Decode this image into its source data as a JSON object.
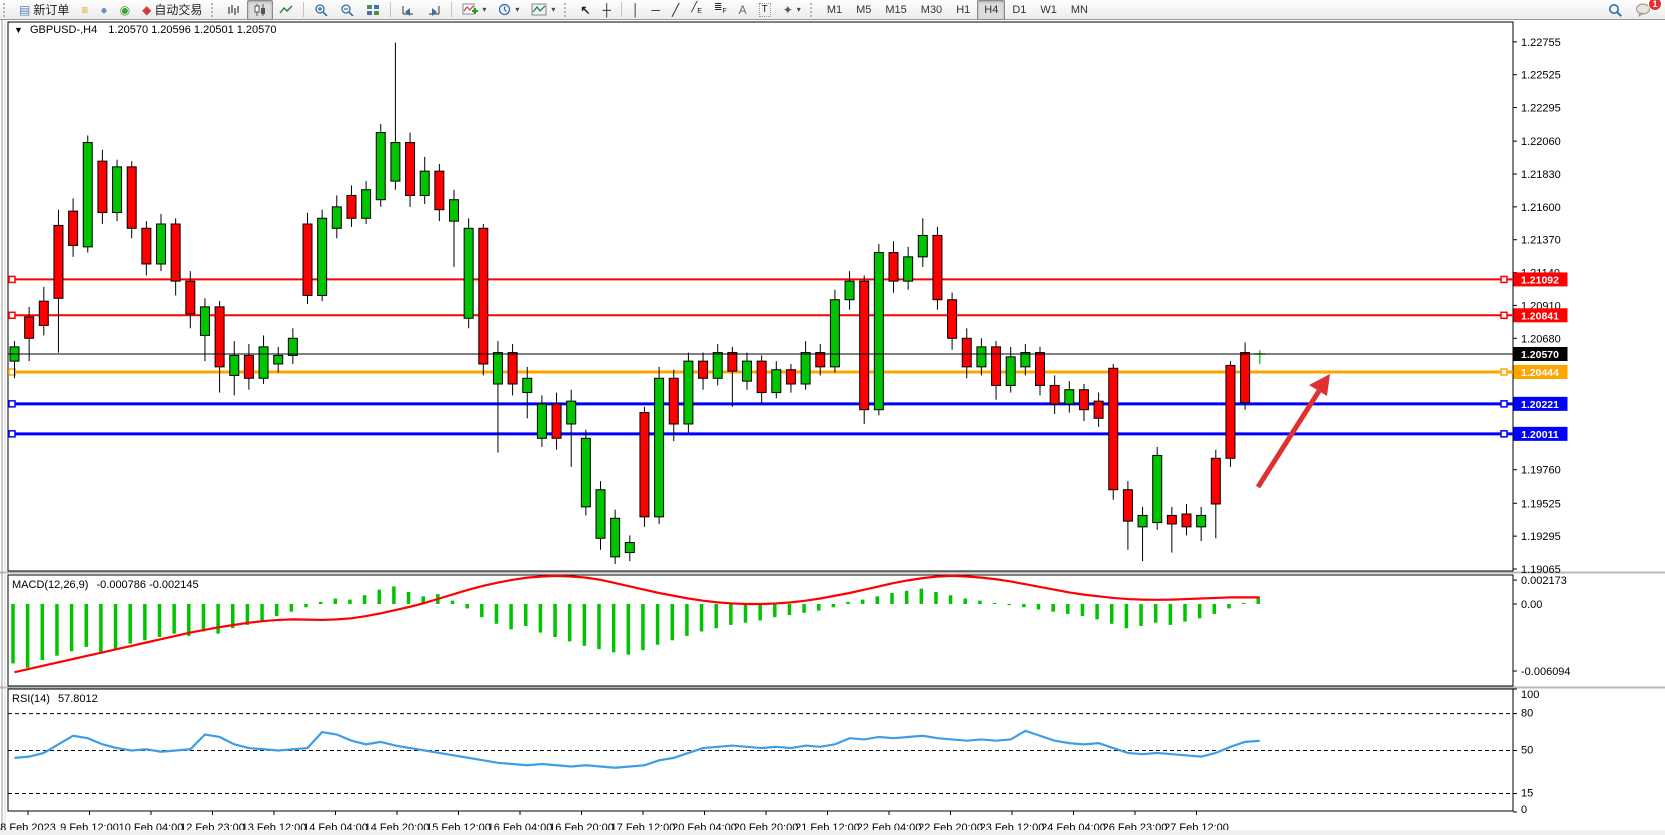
{
  "toolbar": {
    "new_order_label": "新订单",
    "auto_trading_label": "自动交易",
    "notification_count": "1",
    "timeframes": [
      "M1",
      "M5",
      "M15",
      "M30",
      "H1",
      "H4",
      "D1",
      "W1",
      "MN"
    ],
    "active_timeframe": "H4"
  },
  "chart": {
    "title": "GBPUSD-,H4",
    "ohlc": "1.20570 1.20596 1.20501 1.20570"
  },
  "macd": {
    "label": "MACD(12,26,9)",
    "values": "-0.000786 -0.002145",
    "scale_top": "0.002173",
    "scale_zero": "0.00",
    "scale_bottom": "-0.006094"
  },
  "rsi": {
    "label": "RSI(14)",
    "value": "57.8012",
    "scale": [
      100,
      80,
      50,
      15,
      0
    ],
    "dashed_levels": [
      80,
      50,
      15
    ]
  },
  "chart_data": {
    "type": "candlestick",
    "symbol": "GBPUSD-",
    "period": "H4",
    "price_axis_ticks": [
      "1.22755",
      "1.22525",
      "1.22295",
      "1.22060",
      "1.21830",
      "1.21600",
      "1.21370",
      "1.21140",
      "1.20910",
      "1.20680",
      "1.19760",
      "1.19525",
      "1.19295",
      "1.19065"
    ],
    "levels": [
      {
        "price": "1.21092",
        "color": "#ff0000",
        "width": 2
      },
      {
        "price": "1.20841",
        "color": "#ff0000",
        "width": 2
      },
      {
        "price": "1.20570",
        "color": "#000000",
        "width": 1
      },
      {
        "price": "1.20444",
        "color": "#ffa500",
        "width": 3
      },
      {
        "price": "1.20221",
        "color": "#0000ff",
        "width": 3
      },
      {
        "price": "1.20011",
        "color": "#0000ff",
        "width": 3
      }
    ],
    "bull_color": "#00c400",
    "bear_color": "#ff0000",
    "candles": [
      [
        1.2052,
        1.2066,
        1.204,
        1.2062
      ],
      [
        1.2083,
        1.209,
        1.2052,
        1.2068
      ],
      [
        1.2094,
        1.2104,
        1.207,
        1.2077
      ],
      [
        1.2147,
        1.2158,
        1.2058,
        1.2096
      ],
      [
        1.2157,
        1.2166,
        1.2125,
        1.2133
      ],
      [
        1.2132,
        1.221,
        1.2128,
        1.2205
      ],
      [
        1.2192,
        1.22,
        1.2148,
        1.2156
      ],
      [
        1.2156,
        1.2193,
        1.215,
        1.2188
      ],
      [
        1.2188,
        1.2192,
        1.2138,
        1.2145
      ],
      [
        1.2145,
        1.215,
        1.2112,
        1.212
      ],
      [
        1.212,
        1.2155,
        1.2115,
        1.2148
      ],
      [
        1.2148,
        1.2152,
        1.2098,
        1.2108
      ],
      [
        1.2108,
        1.2115,
        1.2075,
        1.2085
      ],
      [
        1.207,
        1.2096,
        1.2052,
        1.209
      ],
      [
        1.209,
        1.2094,
        1.203,
        1.2048
      ],
      [
        1.2042,
        1.2066,
        1.2028,
        1.2056
      ],
      [
        1.2056,
        1.2064,
        1.2032,
        1.204
      ],
      [
        1.204,
        1.207,
        1.2036,
        1.2062
      ],
      [
        1.205,
        1.2062,
        1.2044,
        1.2056
      ],
      [
        1.2056,
        1.2075,
        1.205,
        1.2068
      ],
      [
        1.2148,
        1.2156,
        1.2092,
        1.2098
      ],
      [
        1.2098,
        1.2158,
        1.2094,
        1.2152
      ],
      [
        1.2145,
        1.2168,
        1.2138,
        1.216
      ],
      [
        1.2168,
        1.2175,
        1.2146,
        1.2152
      ],
      [
        1.2152,
        1.2178,
        1.2148,
        1.2172
      ],
      [
        1.2165,
        1.2218,
        1.216,
        1.2212
      ],
      [
        1.2178,
        1.2275,
        1.2172,
        1.2205
      ],
      [
        1.2205,
        1.2212,
        1.216,
        1.2168
      ],
      [
        1.2168,
        1.2195,
        1.2162,
        1.2185
      ],
      [
        1.2185,
        1.219,
        1.215,
        1.2158
      ],
      [
        1.215,
        1.2172,
        1.2118,
        1.2165
      ],
      [
        1.2082,
        1.2152,
        1.2075,
        1.2145
      ],
      [
        1.2145,
        1.2148,
        1.2042,
        1.205
      ],
      [
        1.2036,
        1.2066,
        1.1988,
        1.2058
      ],
      [
        1.2058,
        1.2064,
        1.2028,
        1.2036
      ],
      [
        1.203,
        1.2048,
        1.2012,
        1.204
      ],
      [
        1.1998,
        1.2028,
        1.1992,
        1.2022
      ],
      [
        1.2022,
        1.203,
        1.199,
        1.1998
      ],
      [
        1.2008,
        1.2032,
        1.1978,
        1.2024
      ],
      [
        1.195,
        1.2004,
        1.1944,
        1.1998
      ],
      [
        1.1928,
        1.1968,
        1.192,
        1.1962
      ],
      [
        1.1915,
        1.1948,
        1.191,
        1.1942
      ],
      [
        1.1918,
        1.193,
        1.1912,
        1.1925
      ],
      [
        1.2016,
        1.202,
        1.1936,
        1.1943
      ],
      [
        1.1943,
        1.2048,
        1.1938,
        1.204
      ],
      [
        1.204,
        1.2046,
        1.1996,
        1.2008
      ],
      [
        1.2008,
        1.2058,
        1.2002,
        1.2052
      ],
      [
        1.2052,
        1.2058,
        1.2032,
        1.204
      ],
      [
        1.204,
        1.2064,
        1.2035,
        1.2058
      ],
      [
        1.2058,
        1.2062,
        1.202,
        1.2045
      ],
      [
        1.2038,
        1.2058,
        1.2032,
        1.2052
      ],
      [
        1.2052,
        1.2056,
        1.2022,
        1.203
      ],
      [
        1.203,
        1.2052,
        1.2026,
        1.2046
      ],
      [
        1.2046,
        1.205,
        1.203,
        1.2036
      ],
      [
        1.2036,
        1.2066,
        1.2032,
        1.2058
      ],
      [
        1.2058,
        1.2064,
        1.2042,
        1.2048
      ],
      [
        1.2048,
        1.2102,
        1.2044,
        1.2095
      ],
      [
        1.2095,
        1.2115,
        1.2088,
        1.2108
      ],
      [
        1.2108,
        1.2112,
        1.2008,
        1.2018
      ],
      [
        1.2018,
        1.2134,
        1.2014,
        1.2128
      ],
      [
        1.2128,
        1.2136,
        1.21,
        1.2108
      ],
      [
        1.2108,
        1.2132,
        1.2102,
        1.2125
      ],
      [
        1.2125,
        1.2152,
        1.2118,
        1.214
      ],
      [
        1.214,
        1.2146,
        1.2088,
        1.2095
      ],
      [
        1.2095,
        1.21,
        1.206,
        1.2068
      ],
      [
        1.2068,
        1.2075,
        1.204,
        1.2048
      ],
      [
        1.2048,
        1.2068,
        1.2042,
        1.2062
      ],
      [
        1.2062,
        1.2066,
        1.2025,
        1.2035
      ],
      [
        1.2035,
        1.2062,
        1.203,
        1.2055
      ],
      [
        1.2048,
        1.2064,
        1.2042,
        1.2058
      ],
      [
        1.2058,
        1.2062,
        1.2028,
        1.2035
      ],
      [
        1.2035,
        1.2042,
        1.2015,
        1.2022
      ],
      [
        1.2022,
        1.2038,
        1.2016,
        1.2032
      ],
      [
        1.2032,
        1.2036,
        1.201,
        1.2018
      ],
      [
        1.2024,
        1.203,
        1.2006,
        1.2012
      ],
      [
        1.2047,
        1.205,
        1.1955,
        1.1962
      ],
      [
        1.1962,
        1.1968,
        1.192,
        1.194
      ],
      [
        1.1936,
        1.195,
        1.1912,
        1.1944
      ],
      [
        1.1939,
        1.1992,
        1.1934,
        1.1986
      ],
      [
        1.1944,
        1.195,
        1.1918,
        1.1938
      ],
      [
        1.1945,
        1.1952,
        1.193,
        1.1936
      ],
      [
        1.1936,
        1.195,
        1.1926,
        1.1944
      ],
      [
        1.1984,
        1.199,
        1.1928,
        1.1952
      ],
      [
        1.2049,
        1.2052,
        1.1978,
        1.1984
      ],
      [
        1.2058,
        1.2065,
        1.2018,
        1.2023
      ],
      [
        1.2057,
        1.20596,
        1.20501,
        1.2057
      ]
    ],
    "macd_hist": [
      -5.4,
      -5.8,
      -5.1,
      -4.7,
      -4.3,
      -3.9,
      -4.5,
      -4.1,
      -3.6,
      -3.3,
      -3.0,
      -2.7,
      -2.9,
      -2.5,
      -2.7,
      -2.2,
      -1.9,
      -1.5,
      -1.1,
      -0.7,
      -0.3,
      0.2,
      0.5,
      0.4,
      0.8,
      1.3,
      1.6,
      1.1,
      0.7,
      0.9,
      0.3,
      -0.4,
      -1.2,
      -1.8,
      -2.3,
      -2.0,
      -2.6,
      -3.0,
      -3.4,
      -3.8,
      -4.1,
      -4.4,
      -4.6,
      -4.2,
      -3.7,
      -3.3,
      -2.9,
      -2.5,
      -2.2,
      -1.9,
      -1.7,
      -1.5,
      -1.2,
      -1.0,
      -0.8,
      -0.6,
      -0.3,
      0.2,
      0.4,
      0.7,
      1.0,
      1.2,
      1.4,
      1.1,
      0.8,
      0.5,
      0.3,
      0.1,
      -0.1,
      -0.3,
      -0.5,
      -0.7,
      -0.9,
      -1.1,
      -1.4,
      -1.8,
      -2.2,
      -2.0,
      -1.7,
      -1.9,
      -1.6,
      -1.3,
      -0.9,
      -0.4,
      0.1,
      0.5
    ],
    "macd_signal": [
      -6.2,
      -5.9,
      -5.6,
      -5.3,
      -5.0,
      -4.7,
      -4.4,
      -4.1,
      -3.8,
      -3.5,
      -3.2,
      -2.9,
      -2.6,
      -2.35,
      -2.1,
      -1.9,
      -1.7,
      -1.55,
      -1.45,
      -1.4,
      -1.42,
      -1.45,
      -1.4,
      -1.3,
      -1.1,
      -0.85,
      -0.55,
      -0.25,
      0.1,
      0.5,
      0.9,
      1.3,
      1.65,
      1.95,
      2.2,
      2.4,
      2.5,
      2.55,
      2.5,
      2.4,
      2.2,
      1.9,
      1.6,
      1.3,
      1.0,
      0.75,
      0.5,
      0.3,
      0.15,
      0.05,
      0.0,
      0.0,
      0.05,
      0.15,
      0.3,
      0.5,
      0.75,
      1.0,
      1.3,
      1.6,
      1.9,
      2.15,
      2.35,
      2.5,
      2.55,
      2.5,
      2.4,
      2.25,
      2.05,
      1.8,
      1.55,
      1.3,
      1.05,
      0.85,
      0.7,
      0.55,
      0.45,
      0.4,
      0.38,
      0.4,
      0.45,
      0.5,
      0.55,
      0.6,
      0.6,
      0.6
    ],
    "rsi_points": [
      44,
      45,
      48,
      55,
      62,
      60,
      55,
      52,
      50,
      51,
      49,
      50,
      51,
      63,
      61,
      55,
      52,
      51,
      50,
      51,
      52,
      65,
      63,
      58,
      55,
      57,
      54,
      52,
      50,
      48,
      46,
      44,
      42,
      40,
      39,
      38,
      39,
      38,
      37,
      38,
      37,
      36,
      37,
      38,
      42,
      44,
      48,
      52,
      53,
      54,
      53,
      52,
      53,
      52,
      54,
      53,
      55,
      60,
      59,
      61,
      60,
      61,
      62,
      60,
      59,
      58,
      59,
      58,
      59,
      66,
      62,
      58,
      56,
      55,
      56,
      52,
      48,
      47,
      48,
      47,
      46,
      45,
      48,
      53,
      57,
      57.8
    ],
    "x_labels": [
      "8 Feb 2023",
      "9 Feb 12:00",
      "10 Feb 04:00",
      "12 Feb 23:00",
      "13 Feb 12:00",
      "14 Feb 04:00",
      "14 Feb 20:00",
      "15 Feb 12:00",
      "16 Feb 04:00",
      "16 Feb 20:00",
      "17 Feb 12:00",
      "20 Feb 04:00",
      "20 Feb 20:00",
      "21 Feb 12:00",
      "22 Feb 04:00",
      "22 Feb 20:00",
      "23 Feb 12:00",
      "24 Feb 04:00",
      "26 Feb 23:00",
      "27 Feb 12:00"
    ],
    "annotation_arrow_color": "#e03131"
  }
}
